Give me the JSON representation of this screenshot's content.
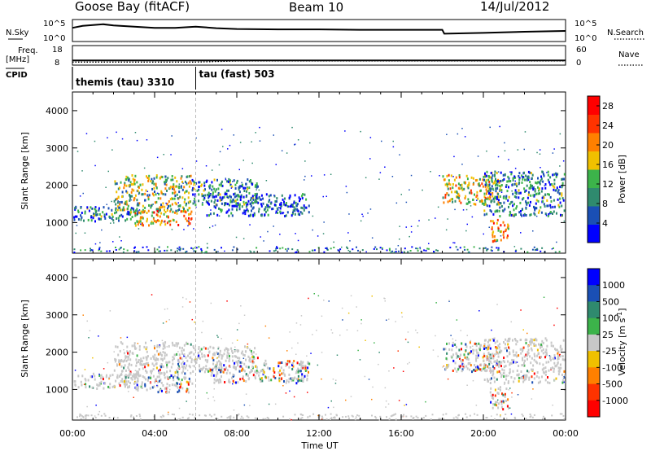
{
  "header": {
    "station": "Goose Bay (fitACF)",
    "beam": "Beam 10",
    "date": "14/Jul/2012"
  },
  "top_panel": {
    "nsky_label": "N.Sky",
    "nsearch_label": "N.Search",
    "nsky_ticks": [
      "10^5",
      "10^0"
    ],
    "nsearch_ticks": [
      "10^5",
      "10^0"
    ],
    "freq_label": "Freq.",
    "freq_unit": "[MHz]",
    "freq_ticks": [
      "18",
      "8"
    ],
    "nave_label": "Nave",
    "nave_ticks": [
      "60",
      "0"
    ],
    "cpid_label": "CPID",
    "cpid_segments": [
      {
        "start_hour": 0,
        "end_hour": 6,
        "label": "themis (tau) 3310"
      },
      {
        "start_hour": 6,
        "end_hour": 24,
        "label": "tau (fast) 503"
      }
    ],
    "nsky_series": {
      "description_hours": [
        0,
        0.5,
        1,
        1.5,
        2,
        3,
        4,
        5,
        6,
        7,
        8,
        10,
        12,
        14,
        16,
        18,
        18.1,
        20,
        22,
        24
      ],
      "values_log": [
        3.3,
        3.8,
        4.0,
        4.2,
        3.9,
        3.6,
        3.3,
        3.3,
        3.6,
        3.2,
        3.0,
        2.9,
        2.9,
        2.8,
        2.8,
        2.8,
        1.8,
        2.0,
        2.3,
        2.5
      ]
    },
    "freq_series": {
      "hours": [
        0,
        6,
        12,
        18,
        24
      ],
      "values": [
        10.6,
        10.6,
        10.6,
        10.6,
        10.6
      ]
    },
    "nave_series": {
      "hours": [
        0,
        4,
        6,
        8,
        12,
        16,
        20,
        24
      ],
      "values": [
        10,
        10,
        10,
        14,
        14,
        14,
        14,
        14
      ]
    }
  },
  "chart_data": [
    {
      "type": "heatmap",
      "title": "Power",
      "xlabel": "Time UT",
      "ylabel": "Slant Range [km]",
      "xlim": [
        0,
        24
      ],
      "ylim": [
        180,
        4500
      ],
      "x_ticks": [
        "00:00",
        "04:00",
        "08:00",
        "12:00",
        "16:00",
        "20:00",
        "00:00"
      ],
      "x_tick_hours": [
        0,
        4,
        8,
        12,
        16,
        20,
        24
      ],
      "y_ticks": [
        1000,
        2000,
        3000,
        4000
      ],
      "colorbar": {
        "label": "Power [dB]",
        "ticks": [
          4,
          8,
          12,
          16,
          20,
          24,
          28
        ],
        "range": [
          0,
          30
        ],
        "colors": [
          "#0000ff",
          "#1a4fb5",
          "#2f8a6e",
          "#3cb34a",
          "#f0c000",
          "#ff8000",
          "#ff3300",
          "#ff0000"
        ]
      },
      "clusters": [
        {
          "h0": 0,
          "h1": 3.2,
          "r0": 1050,
          "r1": 1450,
          "level": 0.28
        },
        {
          "h0": 2.0,
          "h1": 5.8,
          "r0": 1300,
          "r1": 2300,
          "level": 0.45
        },
        {
          "h0": 3.0,
          "h1": 5.8,
          "r0": 950,
          "r1": 1350,
          "level": 0.65
        },
        {
          "h0": 5.8,
          "h1": 9.0,
          "r0": 1500,
          "r1": 2200,
          "level": 0.3
        },
        {
          "h0": 6.5,
          "h1": 11.5,
          "r0": 1200,
          "r1": 1800,
          "level": 0.2
        },
        {
          "h0": 18.0,
          "h1": 20.8,
          "r0": 1500,
          "r1": 2300,
          "level": 0.55
        },
        {
          "h0": 20.0,
          "h1": 24.0,
          "r0": 1200,
          "r1": 2400,
          "level": 0.3
        },
        {
          "h0": 20.3,
          "h1": 21.2,
          "r0": 500,
          "r1": 1100,
          "level": 0.7
        }
      ]
    },
    {
      "type": "heatmap",
      "title": "Velocity",
      "xlabel": "Time UT",
      "ylabel": "Slant Range [km]",
      "xlim": [
        0,
        24
      ],
      "ylim": [
        180,
        4500
      ],
      "x_ticks": [
        "00:00",
        "04:00",
        "08:00",
        "12:00",
        "16:00",
        "20:00",
        "00:00"
      ],
      "x_tick_hours": [
        0,
        4,
        8,
        12,
        16,
        20,
        24
      ],
      "y_ticks": [
        1000,
        2000,
        3000,
        4000
      ],
      "colorbar": {
        "label": "Velocity [m s^-1]",
        "ticks": [
          "1000",
          "500",
          "100",
          "25",
          "-25",
          "-100",
          "-500",
          "-1000"
        ],
        "colors": [
          "#0000ff",
          "#1a4fb5",
          "#2f8a6e",
          "#3cb34a",
          "#c8c8c8",
          "#f0c000",
          "#ff8000",
          "#ff3300",
          "#ff0000"
        ]
      },
      "clusters": [
        {
          "h0": 0,
          "h1": 3.2,
          "r0": 1050,
          "r1": 1450,
          "kind": "gray"
        },
        {
          "h0": 2.0,
          "h1": 5.8,
          "r0": 1300,
          "r1": 2300,
          "kind": "gray"
        },
        {
          "h0": 3.0,
          "h1": 5.8,
          "r0": 950,
          "r1": 1350,
          "kind": "mixed"
        },
        {
          "h0": 5.8,
          "h1": 9.0,
          "r0": 1500,
          "r1": 2200,
          "kind": "gray"
        },
        {
          "h0": 6.5,
          "h1": 11.5,
          "r0": 1200,
          "r1": 1800,
          "kind": "mixed"
        },
        {
          "h0": 18.0,
          "h1": 20.8,
          "r0": 1500,
          "r1": 2300,
          "kind": "mixed"
        },
        {
          "h0": 20.0,
          "h1": 24.0,
          "r0": 1200,
          "r1": 2400,
          "kind": "gray"
        },
        {
          "h0": 20.3,
          "h1": 21.2,
          "r0": 500,
          "r1": 1100,
          "kind": "mixed"
        }
      ]
    }
  ],
  "xaxis_title": "Time UT"
}
